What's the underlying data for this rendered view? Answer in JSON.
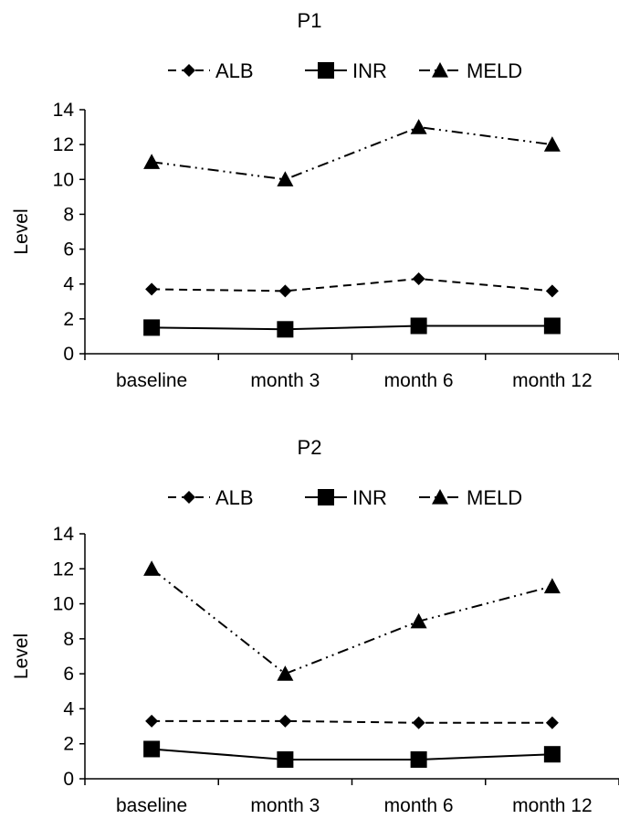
{
  "chart_data": [
    {
      "type": "line",
      "title": "P1",
      "xlabel": "",
      "ylabel": "Level",
      "ylim": [
        0,
        14
      ],
      "yticks": [
        0,
        2,
        4,
        6,
        8,
        10,
        12,
        14
      ],
      "categories": [
        "baseline",
        "month 3",
        "month 6",
        "month 12"
      ],
      "legend_position": "top",
      "series": [
        {
          "name": "ALB",
          "values": [
            3.7,
            3.6,
            4.3,
            3.6
          ],
          "marker": "diamond",
          "dash": "dashed",
          "color": "#000000"
        },
        {
          "name": "INR",
          "values": [
            1.5,
            1.4,
            1.6,
            1.6
          ],
          "marker": "square",
          "dash": "solid",
          "color": "#000000"
        },
        {
          "name": "MELD",
          "values": [
            11,
            10,
            13,
            12
          ],
          "marker": "triangle",
          "dash": "dash-dot-dot",
          "color": "#000000"
        }
      ]
    },
    {
      "type": "line",
      "title": "P2",
      "xlabel": "",
      "ylabel": "Level",
      "ylim": [
        0,
        14
      ],
      "yticks": [
        0,
        2,
        4,
        6,
        8,
        10,
        12,
        14
      ],
      "categories": [
        "baseline",
        "month 3",
        "month 6",
        "month 12"
      ],
      "legend_position": "top",
      "series": [
        {
          "name": "ALB",
          "values": [
            3.3,
            3.3,
            3.2,
            3.2
          ],
          "marker": "diamond",
          "dash": "dashed",
          "color": "#000000"
        },
        {
          "name": "INR",
          "values": [
            1.7,
            1.1,
            1.1,
            1.4
          ],
          "marker": "square",
          "dash": "solid",
          "color": "#000000"
        },
        {
          "name": "MELD",
          "values": [
            12,
            6,
            9,
            11
          ],
          "marker": "triangle",
          "dash": "dash-dot-dot",
          "color": "#000000"
        }
      ]
    }
  ]
}
